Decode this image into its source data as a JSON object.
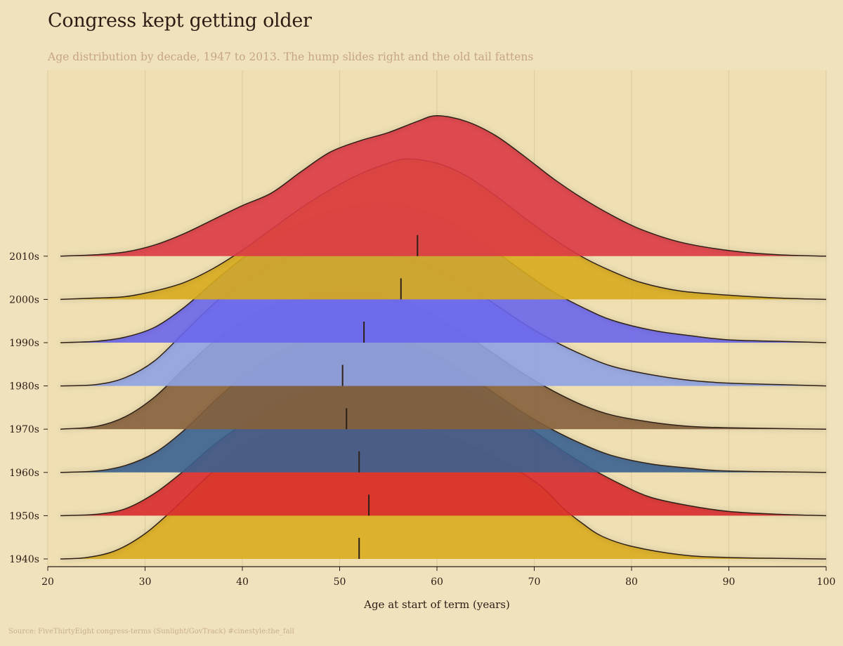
{
  "title": "Congress kept getting older",
  "subtitle": "Age distribution by decade, 1947 to 2013. The hump slides right and the old tail fattens",
  "source": "Source: FiveThirtyEight congress-terms (Sunlight/GovTrack)  #cinestyle:the_fall",
  "chart_data": {
    "type": "ridgeline",
    "xlabel": "Age at start of term (years)",
    "ylabel": "",
    "xlim": [
      20,
      100
    ],
    "x_ticks": [
      20,
      30,
      40,
      50,
      60,
      70,
      80,
      90,
      100
    ],
    "grid": "vertical",
    "series": [
      {
        "name": "1940s",
        "color": "#d9ac1e",
        "median": 52.0,
        "density": [
          [
            21.3,
            0
          ],
          [
            24,
            0.01
          ],
          [
            27,
            0.06
          ],
          [
            30,
            0.18
          ],
          [
            33,
            0.36
          ],
          [
            36,
            0.56
          ],
          [
            39,
            0.74
          ],
          [
            42,
            0.87
          ],
          [
            45,
            0.95
          ],
          [
            48,
            0.98
          ],
          [
            51,
            1.0
          ],
          [
            54,
            0.98
          ],
          [
            57,
            0.94
          ],
          [
            60,
            0.89
          ],
          [
            63,
            0.82
          ],
          [
            66,
            0.72
          ],
          [
            69,
            0.6
          ],
          [
            71,
            0.5
          ],
          [
            73,
            0.36
          ],
          [
            75,
            0.25
          ],
          [
            77,
            0.16
          ],
          [
            80,
            0.09
          ],
          [
            85,
            0.03
          ],
          [
            90,
            0.01
          ],
          [
            100,
            0
          ]
        ]
      },
      {
        "name": "1950s",
        "color": "#d92b2e",
        "median": 53.0,
        "density": [
          [
            21.3,
            0
          ],
          [
            25,
            0.01
          ],
          [
            28,
            0.05
          ],
          [
            31,
            0.16
          ],
          [
            34,
            0.32
          ],
          [
            37,
            0.5
          ],
          [
            40,
            0.65
          ],
          [
            43,
            0.78
          ],
          [
            46,
            0.88
          ],
          [
            49,
            0.95
          ],
          [
            52,
            0.99
          ],
          [
            55,
            1.0
          ],
          [
            58,
            0.98
          ],
          [
            61,
            0.94
          ],
          [
            64,
            0.86
          ],
          [
            67,
            0.74
          ],
          [
            70,
            0.6
          ],
          [
            73,
            0.46
          ],
          [
            76,
            0.33
          ],
          [
            79,
            0.22
          ],
          [
            82,
            0.13
          ],
          [
            86,
            0.07
          ],
          [
            90,
            0.03
          ],
          [
            95,
            0.01
          ],
          [
            100,
            0
          ]
        ]
      },
      {
        "name": "1960s",
        "color": "#3a6290",
        "median": 52.0,
        "density": [
          [
            21.3,
            0
          ],
          [
            25,
            0.01
          ],
          [
            28,
            0.05
          ],
          [
            31,
            0.14
          ],
          [
            34,
            0.3
          ],
          [
            37,
            0.5
          ],
          [
            40,
            0.68
          ],
          [
            43,
            0.82
          ],
          [
            46,
            0.92
          ],
          [
            49,
            0.98
          ],
          [
            51,
            1.0
          ],
          [
            54,
            0.98
          ],
          [
            57,
            0.92
          ],
          [
            60,
            0.83
          ],
          [
            63,
            0.7
          ],
          [
            66,
            0.56
          ],
          [
            69,
            0.42
          ],
          [
            72,
            0.3
          ],
          [
            75,
            0.2
          ],
          [
            78,
            0.12
          ],
          [
            82,
            0.06
          ],
          [
            86,
            0.03
          ],
          [
            90,
            0.01
          ],
          [
            100,
            0
          ]
        ]
      },
      {
        "name": "1970s",
        "color": "#85603c",
        "median": 50.7,
        "density": [
          [
            21.3,
            0
          ],
          [
            25,
            0.02
          ],
          [
            28,
            0.09
          ],
          [
            31,
            0.23
          ],
          [
            34,
            0.43
          ],
          [
            37,
            0.62
          ],
          [
            40,
            0.77
          ],
          [
            43,
            0.88
          ],
          [
            46,
            0.95
          ],
          [
            49,
            0.99
          ],
          [
            51,
            1.0
          ],
          [
            54,
            0.97
          ],
          [
            57,
            0.9
          ],
          [
            60,
            0.8
          ],
          [
            63,
            0.67
          ],
          [
            66,
            0.53
          ],
          [
            69,
            0.39
          ],
          [
            72,
            0.27
          ],
          [
            75,
            0.17
          ],
          [
            78,
            0.1
          ],
          [
            82,
            0.05
          ],
          [
            86,
            0.02
          ],
          [
            90,
            0.01
          ],
          [
            100,
            0
          ]
        ]
      },
      {
        "name": "1980s",
        "color": "#8fa3e4",
        "median": 50.3,
        "density": [
          [
            21.3,
            0
          ],
          [
            25,
            0.01
          ],
          [
            28,
            0.06
          ],
          [
            31,
            0.18
          ],
          [
            34,
            0.38
          ],
          [
            37,
            0.58
          ],
          [
            40,
            0.75
          ],
          [
            43,
            0.87
          ],
          [
            46,
            0.95
          ],
          [
            49,
            0.99
          ],
          [
            51,
            1.0
          ],
          [
            54,
            0.98
          ],
          [
            57,
            0.92
          ],
          [
            60,
            0.84
          ],
          [
            63,
            0.72
          ],
          [
            66,
            0.58
          ],
          [
            69,
            0.44
          ],
          [
            72,
            0.32
          ],
          [
            75,
            0.22
          ],
          [
            78,
            0.14
          ],
          [
            82,
            0.08
          ],
          [
            86,
            0.04
          ],
          [
            90,
            0.02
          ],
          [
            95,
            0.01
          ],
          [
            100,
            0
          ]
        ]
      },
      {
        "name": "1990s",
        "color": "#6a66ec",
        "median": 52.5,
        "density": [
          [
            21.3,
            0
          ],
          [
            25,
            0.01
          ],
          [
            28,
            0.04
          ],
          [
            31,
            0.11
          ],
          [
            34,
            0.25
          ],
          [
            37,
            0.43
          ],
          [
            40,
            0.6
          ],
          [
            43,
            0.74
          ],
          [
            46,
            0.85
          ],
          [
            49,
            0.93
          ],
          [
            52,
            0.98
          ],
          [
            54,
            1.0
          ],
          [
            57,
            0.97
          ],
          [
            60,
            0.9
          ],
          [
            63,
            0.79
          ],
          [
            66,
            0.65
          ],
          [
            69,
            0.5
          ],
          [
            72,
            0.36
          ],
          [
            75,
            0.25
          ],
          [
            78,
            0.16
          ],
          [
            82,
            0.09
          ],
          [
            86,
            0.05
          ],
          [
            90,
            0.02
          ],
          [
            95,
            0.01
          ],
          [
            100,
            0
          ]
        ]
      },
      {
        "name": "2000s",
        "color": "#d7ab1e",
        "median": 56.3,
        "density": [
          [
            21.3,
            0
          ],
          [
            25,
            0.01
          ],
          [
            28,
            0.02
          ],
          [
            31,
            0.06
          ],
          [
            34,
            0.12
          ],
          [
            37,
            0.22
          ],
          [
            40,
            0.35
          ],
          [
            43,
            0.5
          ],
          [
            46,
            0.65
          ],
          [
            49,
            0.78
          ],
          [
            52,
            0.89
          ],
          [
            55,
            0.97
          ],
          [
            57,
            1.0
          ],
          [
            60,
            0.97
          ],
          [
            63,
            0.88
          ],
          [
            66,
            0.74
          ],
          [
            69,
            0.58
          ],
          [
            72,
            0.43
          ],
          [
            75,
            0.3
          ],
          [
            78,
            0.2
          ],
          [
            81,
            0.12
          ],
          [
            85,
            0.06
          ],
          [
            90,
            0.03
          ],
          [
            95,
            0.01
          ],
          [
            100,
            0
          ]
        ]
      },
      {
        "name": "2010s",
        "color": "#db3a44",
        "median": 58.0,
        "density": [
          [
            21.3,
            0
          ],
          [
            25,
            0.01
          ],
          [
            28,
            0.03
          ],
          [
            31,
            0.08
          ],
          [
            34,
            0.16
          ],
          [
            37,
            0.26
          ],
          [
            40,
            0.36
          ],
          [
            43,
            0.45
          ],
          [
            46,
            0.6
          ],
          [
            49,
            0.74
          ],
          [
            52,
            0.82
          ],
          [
            55,
            0.88
          ],
          [
            58,
            0.96
          ],
          [
            60,
            1.0
          ],
          [
            63,
            0.96
          ],
          [
            66,
            0.86
          ],
          [
            69,
            0.71
          ],
          [
            72,
            0.55
          ],
          [
            75,
            0.41
          ],
          [
            78,
            0.29
          ],
          [
            81,
            0.19
          ],
          [
            85,
            0.1
          ],
          [
            90,
            0.04
          ],
          [
            95,
            0.01
          ],
          [
            100,
            0
          ]
        ]
      }
    ]
  }
}
